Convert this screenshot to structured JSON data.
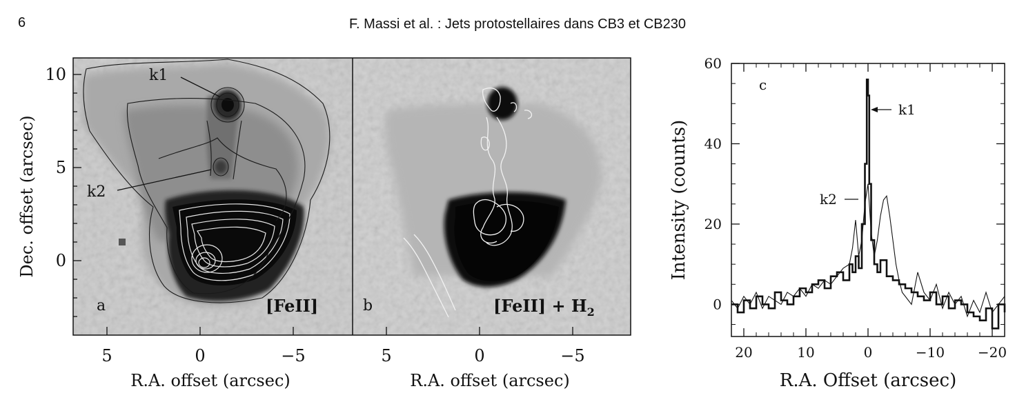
{
  "header": {
    "page_number": "6",
    "running_title": "F. Massi et al. : Jets protostellaires dans CB3 et CB230"
  },
  "panel_ab": {
    "ylabel": "Dec. offset (arcsec)",
    "xlabel": "R.A. offset (arcsec)",
    "y_ticks": [
      "10",
      "5",
      "0"
    ],
    "x_ticks": [
      "5",
      "0",
      "−5"
    ],
    "panel_a": {
      "letter": "a",
      "tag": "[FeII]",
      "label_k1": "k1",
      "label_k2": "k2"
    },
    "panel_b": {
      "letter": "b",
      "tag": "[FeII] + H",
      "tag_sub": "2"
    }
  },
  "chart_data": {
    "type": "line",
    "panel_letter": "c",
    "xlabel": "R.A. Offset (arcsec)",
    "ylabel": "Intensity (counts)",
    "xlim": [
      22,
      -22
    ],
    "ylim": [
      -8,
      60
    ],
    "x_ticks": [
      20,
      10,
      0,
      -10,
      -20
    ],
    "x_tick_labels": [
      "20",
      "10",
      "0",
      "−10",
      "−20"
    ],
    "y_ticks": [
      0,
      20,
      40,
      60
    ],
    "y_tick_labels": [
      "0",
      "20",
      "40",
      "60"
    ],
    "annotations": [
      {
        "text": "k1"
      },
      {
        "text": "k2"
      }
    ],
    "series": [
      {
        "style": "thick",
        "x": [
          22,
          21,
          20,
          19,
          18,
          17,
          16,
          15,
          14,
          13,
          12,
          11,
          10,
          9,
          8,
          7,
          6,
          5,
          4,
          3,
          2.5,
          2,
          1.5,
          1,
          0.5,
          0.2,
          0,
          -0.2,
          -0.5,
          -1,
          -1.5,
          -2,
          -3,
          -4,
          -5,
          -6,
          -7,
          -8,
          -9,
          -10,
          -11,
          -12,
          -13,
          -14,
          -15,
          -16,
          -17,
          -18,
          -19,
          -20,
          -21,
          -22
        ],
        "y": [
          0,
          -2,
          1,
          -1,
          2,
          0,
          -1,
          3,
          1,
          0,
          2,
          4,
          3,
          5,
          6,
          4,
          7,
          8,
          6,
          10,
          8,
          12,
          9,
          20,
          35,
          56,
          52,
          30,
          16,
          10,
          8,
          11,
          7,
          6,
          5,
          4,
          3,
          2,
          1,
          3,
          0,
          2,
          -1,
          1,
          0,
          -2,
          -3,
          -4,
          -1,
          -6,
          0,
          -2
        ]
      },
      {
        "style": "thin",
        "x": [
          22,
          21,
          20,
          19,
          18,
          17,
          16,
          15,
          14,
          13,
          12,
          11,
          10,
          9,
          8,
          7,
          6,
          5,
          4,
          3,
          2.5,
          2,
          1.5,
          1,
          0.5,
          0,
          -0.5,
          -1,
          -1.5,
          -2,
          -2.5,
          -3,
          -3.5,
          -4,
          -4.5,
          -5,
          -5.5,
          -6,
          -7,
          -8,
          -9,
          -10,
          -11,
          -12,
          -13,
          -14,
          -15,
          -16,
          -17,
          -18,
          -19,
          -20,
          -21,
          -22
        ],
        "y": [
          1,
          -1,
          2,
          0,
          3,
          -1,
          2,
          1,
          0,
          3,
          2,
          4,
          2,
          5,
          4,
          6,
          5,
          7,
          9,
          10,
          14,
          21,
          12,
          16,
          25,
          30,
          18,
          12,
          16,
          22,
          26,
          27,
          22,
          16,
          10,
          6,
          3,
          2,
          0,
          8,
          3,
          1,
          5,
          -1,
          3,
          0,
          2,
          -3,
          1,
          -2,
          3,
          -2,
          0,
          2
        ]
      }
    ]
  }
}
